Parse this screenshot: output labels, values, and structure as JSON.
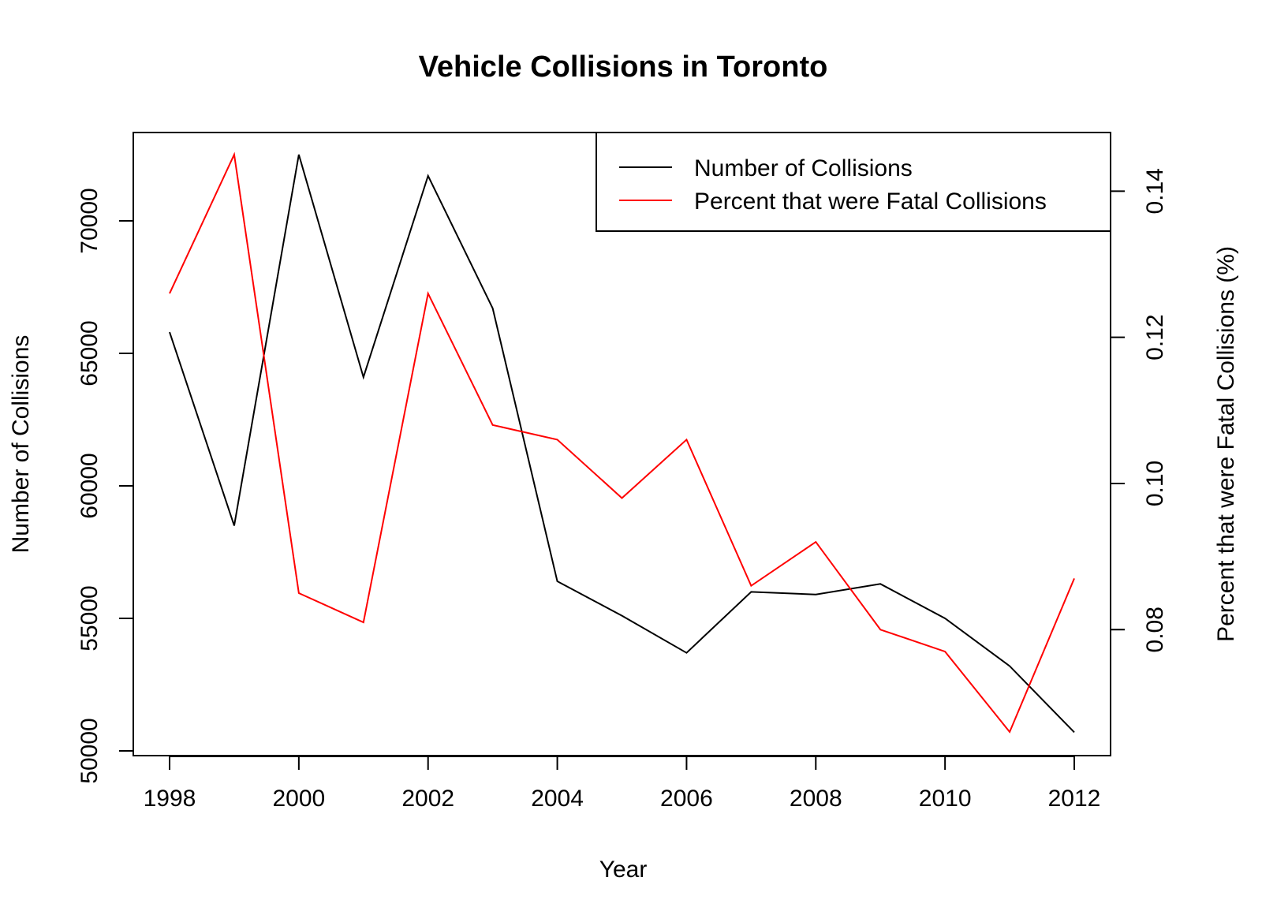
{
  "chart_data": {
    "type": "line",
    "title": "Vehicle Collisions in Toronto",
    "xlabel": "Year",
    "ylabel": "Number of Collisions",
    "y2label": "Percent that were Fatal Collisions (%)",
    "x": [
      1998,
      1999,
      2000,
      2001,
      2002,
      2003,
      2004,
      2005,
      2006,
      2007,
      2008,
      2009,
      2010,
      2011,
      2012
    ],
    "xticks": [
      "1998",
      "2000",
      "2002",
      "2004",
      "2006",
      "2008",
      "2010",
      "2012"
    ],
    "yticks": [
      "50000",
      "55000",
      "60000",
      "65000",
      "70000"
    ],
    "y2ticks": [
      "0.08",
      "0.10",
      "0.12",
      "0.14"
    ],
    "xlim": [
      1998,
      2012
    ],
    "ylim": [
      50000,
      72500
    ],
    "y2lim": [
      0.066,
      0.145
    ],
    "legend_position": "top-right",
    "series": [
      {
        "name": "Number of Collisions",
        "axis": "left",
        "color": "#000000",
        "values": [
          65800,
          58500,
          72500,
          64100,
          71700,
          66700,
          56400,
          55100,
          53700,
          56000,
          55900,
          56300,
          55000,
          53200,
          50700
        ]
      },
      {
        "name": "Percent that were Fatal Collisions",
        "axis": "right",
        "color": "#ff0000",
        "values": [
          0.126,
          0.145,
          0.085,
          0.081,
          0.126,
          0.108,
          0.106,
          0.098,
          0.106,
          0.086,
          0.092,
          0.08,
          0.077,
          0.066,
          0.087
        ]
      }
    ]
  }
}
